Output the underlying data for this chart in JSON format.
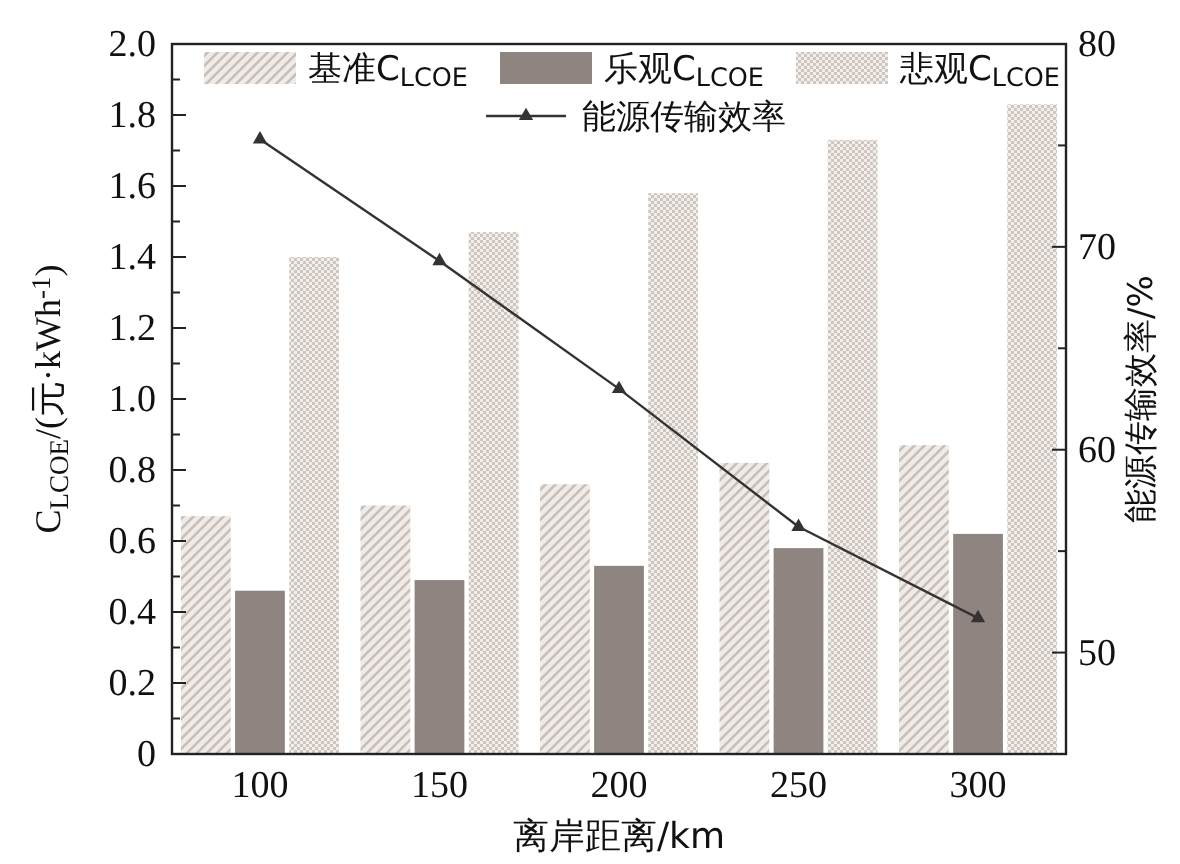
{
  "chart_data": {
    "type": "bar",
    "xlabel": "离岸距离/km",
    "ylabel": "C$_{LCOE}$/(元·kWh$^{-1}$)",
    "y2label": "能源传输效率/%",
    "categories": [
      "100",
      "150",
      "200",
      "250",
      "300"
    ],
    "series": [
      {
        "name": "基准C$_{LCOE}$",
        "color": "#c9bfb7",
        "values": [
          0.67,
          0.7,
          0.76,
          0.82,
          0.87
        ]
      },
      {
        "name": "乐观C$_{LCOE}$",
        "color": "#8f8580",
        "values": [
          0.46,
          0.49,
          0.53,
          0.58,
          0.62
        ]
      },
      {
        "name": "悲观C$_{LCOE}$",
        "color": "#cfc6bf",
        "values": [
          1.4,
          1.47,
          1.58,
          1.73,
          1.83
        ]
      },
      {
        "name": "能源传输效率",
        "type": "line",
        "axis": "y2",
        "color": "#333333",
        "marker": "triangle",
        "values": [
          75.3,
          69.3,
          63.0,
          56.2,
          51.7
        ]
      }
    ],
    "ylim": [
      0,
      2.0
    ],
    "yticks": [
      0,
      {
        "value": 0.1,
        "label": null
      },
      0.2,
      {
        "value": 0.3,
        "label": null
      },
      0.4,
      {
        "value": 0.5,
        "label": null
      },
      0.6,
      {
        "value": 0.7,
        "label": null
      },
      0.8,
      {
        "value": 0.9,
        "label": null
      },
      {
        "value": 1.0,
        "label": "1.0"
      },
      {
        "value": 1.1,
        "label": null
      },
      1.2,
      {
        "value": 1.3,
        "label": null
      },
      1.4,
      {
        "value": 1.5,
        "label": null
      },
      1.6,
      {
        "value": 1.7,
        "label": null
      },
      1.8,
      {
        "value": 1.9,
        "label": null
      },
      {
        "value": 2.0,
        "label": "2.0"
      }
    ],
    "y2lim": [
      45,
      80
    ],
    "y2ticks": [
      50,
      {
        "value": 55,
        "label": null
      },
      60,
      {
        "value": 65,
        "label": null
      },
      70,
      {
        "value": 75,
        "label": null
      },
      80
    ],
    "legend": "top",
    "grid": false
  }
}
